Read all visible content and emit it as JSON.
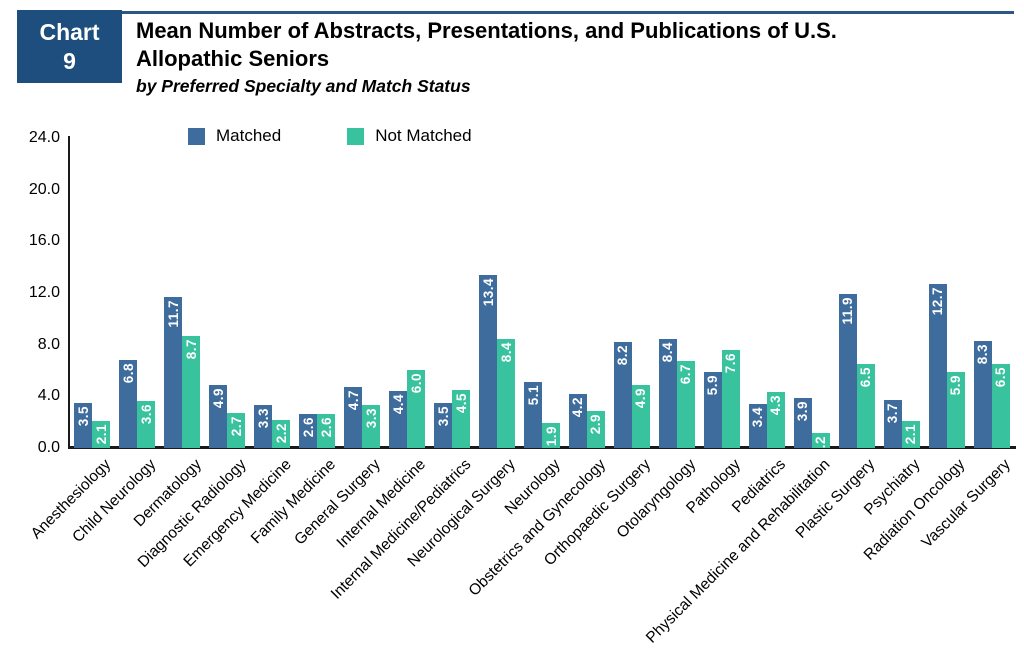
{
  "header": {
    "chart_label": "Chart",
    "chart_number": "9",
    "title_line1": "Mean Number of Abstracts, Presentations, and Publications of U.S.",
    "title_line2": "Allopathic Seniors",
    "subtitle": "by Preferred Specialty and Match Status"
  },
  "colors": {
    "tag_navy": "#1E4E7D",
    "top_rule": "#2A5788",
    "matched_blue": "#3E6C9C",
    "not_matched_teal": "#38C29E",
    "axis_black": "#1A1A1A",
    "value_label_white": "#FFFFFF"
  },
  "chart_data": {
    "type": "bar",
    "title": "Mean Number of Abstracts, Presentations, and Publications of U.S. Allopathic Seniors",
    "subtitle": "by Preferred Specialty and Match Status",
    "xlabel": "",
    "ylabel": "",
    "ylim": [
      0,
      24
    ],
    "yticks": [
      24,
      20,
      16,
      12,
      8,
      4,
      0
    ],
    "ytick_format": "one-decimal",
    "grid": false,
    "legend_position": "top",
    "value_labels": "inside-top, rotated 90, white bold",
    "categories": [
      "Anesthesiology",
      "Child Neurology",
      "Dermatology",
      "Diagnostic Radiology",
      "Emergency Medicine",
      "Family Medicine",
      "General Surgery",
      "Internal Medicine",
      "Internal Medicine/Pediatrics",
      "Neurological Surgery",
      "Neurology",
      "Obstetrics and Gynecology",
      "Orthopaedic Surgery",
      "Otolaryngology",
      "Pathology",
      "Pediatrics",
      "Physical Medicine and Rehabilitation",
      "Plastic Surgery",
      "Psychiatry",
      "Radiation Oncology",
      "Vascular Surgery"
    ],
    "series": [
      {
        "name": "Matched",
        "color": "#3E6C9C",
        "values": [
          3.5,
          6.8,
          11.7,
          4.9,
          3.3,
          2.6,
          4.7,
          4.4,
          3.5,
          13.4,
          5.1,
          4.2,
          8.2,
          8.4,
          5.9,
          3.4,
          3.9,
          11.9,
          3.7,
          12.7,
          8.3
        ]
      },
      {
        "name": "Not Matched",
        "color": "#38C29E",
        "values": [
          2.1,
          3.6,
          8.7,
          2.7,
          2.2,
          2.6,
          3.3,
          6.0,
          4.5,
          8.4,
          1.9,
          2.9,
          4.9,
          6.7,
          7.6,
          4.3,
          1.2,
          6.5,
          2.1,
          5.9,
          6.5
        ]
      }
    ]
  }
}
